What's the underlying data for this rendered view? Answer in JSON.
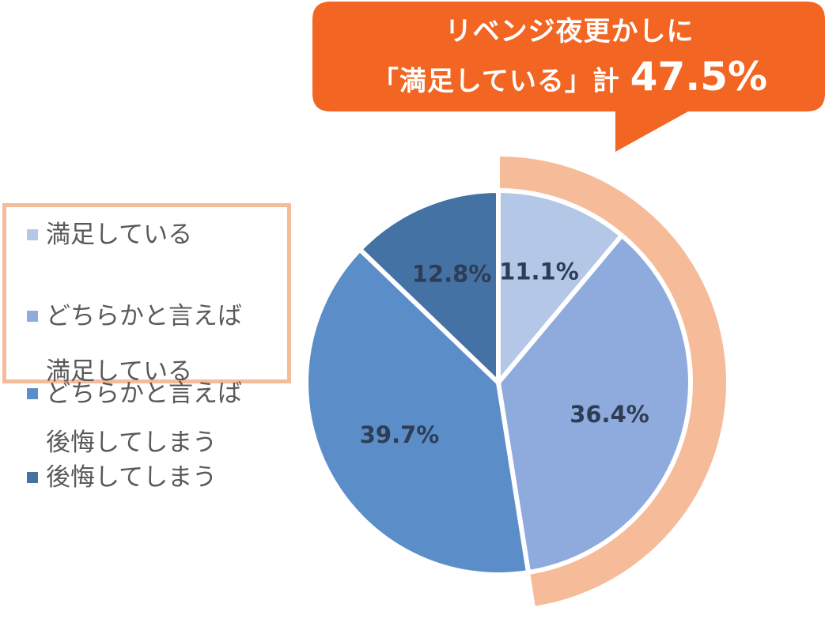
{
  "callout": {
    "line1": "リベンジ夜更かしに",
    "line2_prefix": "「満足している」計",
    "line2_value": "47.5%",
    "fill_color": "#f26522"
  },
  "highlight_color": "#f6bb99",
  "chart_data": {
    "type": "pie",
    "title": "",
    "start_angle_deg": 0,
    "direction": "clockwise",
    "slices": [
      {
        "label": "満足している",
        "value": 11.1,
        "display": "11.1%",
        "color": "#b4c7e7"
      },
      {
        "label": "どちらかと言えば満足している",
        "value": 36.4,
        "display": "36.4%",
        "color": "#8faadc"
      },
      {
        "label": "どちらかと言えば後悔してしまう",
        "value": 39.7,
        "display": "39.7%",
        "color": "#5b8ec8"
      },
      {
        "label": "後悔してしまう",
        "value": 12.8,
        "display": "12.8%",
        "color": "#4472a4"
      }
    ],
    "legend": {
      "placement": "left",
      "items": [
        {
          "line1": "満足している",
          "line2": ""
        },
        {
          "line1": "どちらかと言えば",
          "line2": "満足している"
        },
        {
          "line1": "どちらかと言えば",
          "line2": "後悔してしまう"
        },
        {
          "line1": "後悔してしまう",
          "line2": ""
        }
      ]
    }
  }
}
